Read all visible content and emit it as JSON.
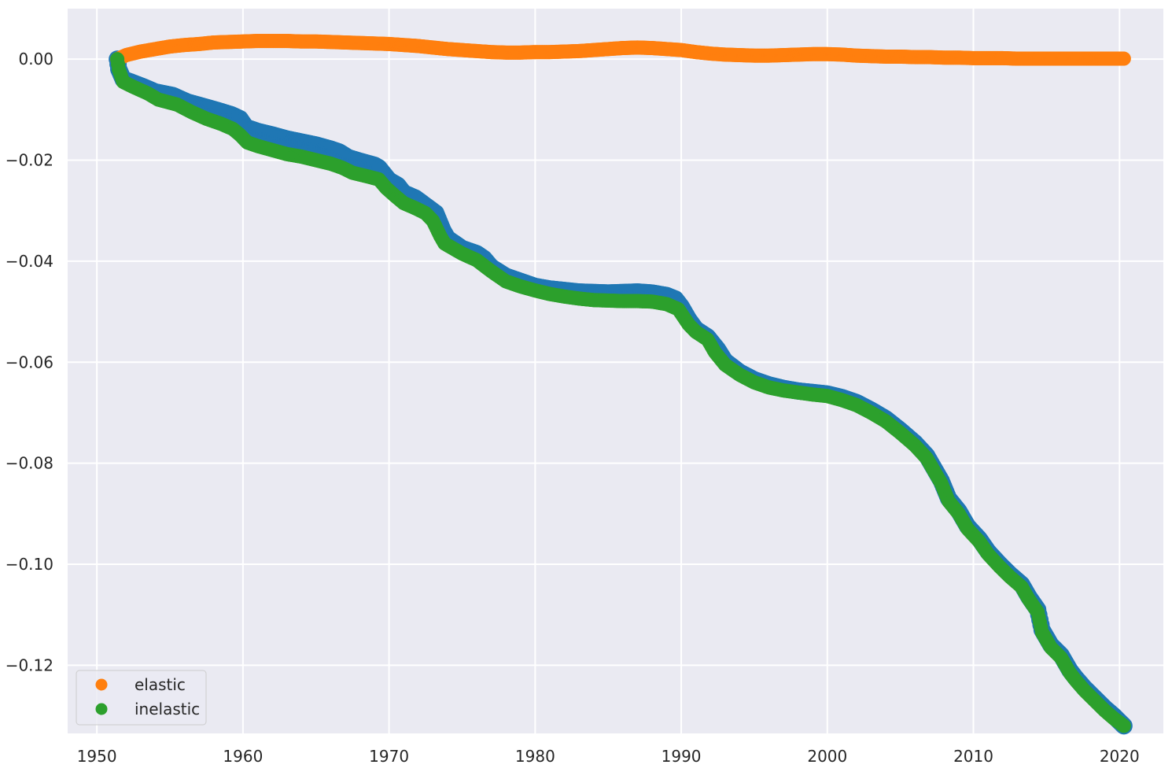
{
  "chart_data": {
    "type": "scatter",
    "xlim": [
      1948,
      2023
    ],
    "ylim": [
      -0.1335,
      0.01
    ],
    "grid": true,
    "legend_position": "lower-left",
    "x_ticks": [
      1950,
      1960,
      1970,
      1980,
      1990,
      2000,
      2010,
      2020
    ],
    "y_ticks": [
      0.0,
      -0.02,
      -0.04,
      -0.06,
      -0.08,
      -0.1,
      -0.12
    ],
    "x_tick_labels": [
      "1950",
      "1960",
      "1970",
      "1980",
      "1990",
      "2000",
      "2010",
      "2020"
    ],
    "y_tick_labels": [
      "0.00",
      "−0.02",
      "−0.04",
      "−0.06",
      "−0.08",
      "−0.10",
      "−0.12"
    ],
    "colors": {
      "background": "#eaeaf2",
      "grid": "#ffffff",
      "total": "#1f77b4",
      "elastic": "#ff7f0e",
      "inelastic": "#2ca02c"
    },
    "legend": [
      {
        "label": "elastic",
        "color": "#ff7f0e"
      },
      {
        "label": "inelastic",
        "color": "#2ca02c"
      }
    ],
    "series": [
      {
        "color": "#1f77b4",
        "points": [
          [
            1951.4,
            0.0
          ],
          [
            1951.5,
            -0.002
          ],
          [
            1951.8,
            -0.004
          ],
          [
            1952.3,
            -0.0045
          ],
          [
            1953.2,
            -0.0055
          ],
          [
            1954.0,
            -0.0065
          ],
          [
            1955.2,
            -0.0072
          ],
          [
            1956.2,
            -0.0085
          ],
          [
            1957.2,
            -0.0093
          ],
          [
            1958.3,
            -0.0102
          ],
          [
            1959.2,
            -0.011
          ],
          [
            1959.8,
            -0.0118
          ],
          [
            1960.2,
            -0.0135
          ],
          [
            1961.0,
            -0.0143
          ],
          [
            1962.0,
            -0.015
          ],
          [
            1963.0,
            -0.0158
          ],
          [
            1964.0,
            -0.0164
          ],
          [
            1965.0,
            -0.017
          ],
          [
            1966.0,
            -0.0178
          ],
          [
            1966.6,
            -0.0184
          ],
          [
            1967.2,
            -0.0195
          ],
          [
            1968.0,
            -0.0202
          ],
          [
            1969.0,
            -0.021
          ],
          [
            1969.3,
            -0.0215
          ],
          [
            1970.0,
            -0.024
          ],
          [
            1970.6,
            -0.025
          ],
          [
            1971.0,
            -0.0265
          ],
          [
            1971.8,
            -0.0275
          ],
          [
            1972.5,
            -0.029
          ],
          [
            1973.2,
            -0.0305
          ],
          [
            1973.7,
            -0.034
          ],
          [
            1974.0,
            -0.0355
          ],
          [
            1975.0,
            -0.0375
          ],
          [
            1976.0,
            -0.0385
          ],
          [
            1976.5,
            -0.0395
          ],
          [
            1977.0,
            -0.0412
          ],
          [
            1978.0,
            -0.043
          ],
          [
            1979.0,
            -0.044
          ],
          [
            1980.0,
            -0.045
          ],
          [
            1981.0,
            -0.0455
          ],
          [
            1982.0,
            -0.0458
          ],
          [
            1983.0,
            -0.0461
          ],
          [
            1984.0,
            -0.0462
          ],
          [
            1985.0,
            -0.0463
          ],
          [
            1986.0,
            -0.0462
          ],
          [
            1987.0,
            -0.0461
          ],
          [
            1988.0,
            -0.0463
          ],
          [
            1989.0,
            -0.0468
          ],
          [
            1989.6,
            -0.0475
          ],
          [
            1990.0,
            -0.049
          ],
          [
            1990.5,
            -0.0515
          ],
          [
            1991.0,
            -0.0535
          ],
          [
            1991.8,
            -0.055
          ],
          [
            1992.5,
            -0.0575
          ],
          [
            1993.0,
            -0.0598
          ],
          [
            1994.0,
            -0.062
          ],
          [
            1995.0,
            -0.0635
          ],
          [
            1996.0,
            -0.0645
          ],
          [
            1997.0,
            -0.0652
          ],
          [
            1998.0,
            -0.0657
          ],
          [
            1999.0,
            -0.066
          ],
          [
            2000.0,
            -0.0663
          ],
          [
            2001.0,
            -0.067
          ],
          [
            2002.0,
            -0.068
          ],
          [
            2003.0,
            -0.0695
          ],
          [
            2004.0,
            -0.0712
          ],
          [
            2005.0,
            -0.0735
          ],
          [
            2006.0,
            -0.076
          ],
          [
            2006.8,
            -0.0785
          ],
          [
            2007.3,
            -0.081
          ],
          [
            2007.8,
            -0.0835
          ],
          [
            2008.3,
            -0.087
          ],
          [
            2009.0,
            -0.0895
          ],
          [
            2009.6,
            -0.0925
          ],
          [
            2010.4,
            -0.095
          ],
          [
            2011.0,
            -0.0975
          ],
          [
            2011.8,
            -0.1
          ],
          [
            2012.5,
            -0.102
          ],
          [
            2013.3,
            -0.104
          ],
          [
            2013.8,
            -0.1065
          ],
          [
            2014.4,
            -0.109
          ],
          [
            2014.7,
            -0.113
          ],
          [
            2015.3,
            -0.116
          ],
          [
            2016.0,
            -0.118
          ],
          [
            2016.6,
            -0.121
          ],
          [
            2017.0,
            -0.1225
          ],
          [
            2017.6,
            -0.1245
          ],
          [
            2018.3,
            -0.1265
          ],
          [
            2019.0,
            -0.1285
          ],
          [
            2019.6,
            -0.13
          ],
          [
            2020.3,
            -0.132
          ]
        ]
      },
      {
        "name": "elastic",
        "color": "#ff7f0e",
        "points": [
          [
            1951.4,
            0.0
          ],
          [
            1952.0,
            0.0008
          ],
          [
            1953.0,
            0.0015
          ],
          [
            1954.0,
            0.002
          ],
          [
            1955.0,
            0.0025
          ],
          [
            1956.0,
            0.0028
          ],
          [
            1957.0,
            0.003
          ],
          [
            1958.0,
            0.0033
          ],
          [
            1959.0,
            0.0034
          ],
          [
            1960.0,
            0.0035
          ],
          [
            1961.0,
            0.0036
          ],
          [
            1962.0,
            0.0036
          ],
          [
            1963.0,
            0.0036
          ],
          [
            1964.0,
            0.0035
          ],
          [
            1965.0,
            0.0035
          ],
          [
            1966.0,
            0.0034
          ],
          [
            1967.0,
            0.0033
          ],
          [
            1968.0,
            0.0032
          ],
          [
            1969.0,
            0.0031
          ],
          [
            1970.0,
            0.003
          ],
          [
            1971.0,
            0.0028
          ],
          [
            1972.0,
            0.0026
          ],
          [
            1973.0,
            0.0023
          ],
          [
            1974.0,
            0.002
          ],
          [
            1975.0,
            0.0018
          ],
          [
            1976.0,
            0.0016
          ],
          [
            1977.0,
            0.0014
          ],
          [
            1978.0,
            0.0013
          ],
          [
            1979.0,
            0.0013
          ],
          [
            1980.0,
            0.0014
          ],
          [
            1981.0,
            0.0014
          ],
          [
            1982.0,
            0.0015
          ],
          [
            1983.0,
            0.0016
          ],
          [
            1984.0,
            0.0018
          ],
          [
            1985.0,
            0.002
          ],
          [
            1986.0,
            0.0022
          ],
          [
            1987.0,
            0.0023
          ],
          [
            1988.0,
            0.0022
          ],
          [
            1989.0,
            0.002
          ],
          [
            1990.0,
            0.0018
          ],
          [
            1991.0,
            0.0014
          ],
          [
            1992.0,
            0.0011
          ],
          [
            1993.0,
            0.0009
          ],
          [
            1994.0,
            0.0008
          ],
          [
            1995.0,
            0.0007
          ],
          [
            1996.0,
            0.0007
          ],
          [
            1997.0,
            0.0008
          ],
          [
            1998.0,
            0.0009
          ],
          [
            1999.0,
            0.001
          ],
          [
            2000.0,
            0.001
          ],
          [
            2001.0,
            0.0009
          ],
          [
            2002.0,
            0.0007
          ],
          [
            2003.0,
            0.0006
          ],
          [
            2004.0,
            0.0005
          ],
          [
            2005.0,
            0.0005
          ],
          [
            2006.0,
            0.0004
          ],
          [
            2007.0,
            0.0004
          ],
          [
            2008.0,
            0.0003
          ],
          [
            2009.0,
            0.0003
          ],
          [
            2010.0,
            0.0002
          ],
          [
            2011.0,
            0.0002
          ],
          [
            2012.0,
            0.0002
          ],
          [
            2013.0,
            0.0001
          ],
          [
            2014.0,
            0.0001
          ],
          [
            2015.0,
            0.0001
          ],
          [
            2016.0,
            0.0001
          ],
          [
            2017.0,
            0.0001
          ],
          [
            2018.0,
            0.0001
          ],
          [
            2019.0,
            0.0001
          ],
          [
            2020.3,
            0.0001
          ]
        ]
      },
      {
        "name": "inelastic",
        "color": "#2ca02c",
        "points": [
          [
            1951.4,
            0.0
          ],
          [
            1951.5,
            -0.002
          ],
          [
            1951.8,
            -0.0045
          ],
          [
            1952.5,
            -0.0055
          ],
          [
            1953.5,
            -0.0068
          ],
          [
            1954.2,
            -0.008
          ],
          [
            1955.5,
            -0.009
          ],
          [
            1956.5,
            -0.0105
          ],
          [
            1957.5,
            -0.0118
          ],
          [
            1958.5,
            -0.0128
          ],
          [
            1959.3,
            -0.0138
          ],
          [
            1959.8,
            -0.015
          ],
          [
            1960.3,
            -0.0165
          ],
          [
            1961.0,
            -0.0172
          ],
          [
            1962.0,
            -0.018
          ],
          [
            1963.0,
            -0.0188
          ],
          [
            1964.0,
            -0.0193
          ],
          [
            1965.0,
            -0.02
          ],
          [
            1966.0,
            -0.0207
          ],
          [
            1966.8,
            -0.0215
          ],
          [
            1967.5,
            -0.0225
          ],
          [
            1968.5,
            -0.0232
          ],
          [
            1969.3,
            -0.0238
          ],
          [
            1969.8,
            -0.0255
          ],
          [
            1970.3,
            -0.0268
          ],
          [
            1971.0,
            -0.0285
          ],
          [
            1971.8,
            -0.0295
          ],
          [
            1972.5,
            -0.0305
          ],
          [
            1973.0,
            -0.032
          ],
          [
            1973.5,
            -0.035
          ],
          [
            1973.8,
            -0.0365
          ],
          [
            1975.0,
            -0.0385
          ],
          [
            1976.0,
            -0.0398
          ],
          [
            1977.0,
            -0.042
          ],
          [
            1978.0,
            -0.044
          ],
          [
            1979.0,
            -0.045
          ],
          [
            1980.0,
            -0.0458
          ],
          [
            1981.0,
            -0.0465
          ],
          [
            1982.0,
            -0.047
          ],
          [
            1983.0,
            -0.0474
          ],
          [
            1984.0,
            -0.0477
          ],
          [
            1985.0,
            -0.0478
          ],
          [
            1986.0,
            -0.0479
          ],
          [
            1987.0,
            -0.0479
          ],
          [
            1988.0,
            -0.048
          ],
          [
            1989.0,
            -0.0485
          ],
          [
            1989.8,
            -0.0495
          ],
          [
            1990.5,
            -0.0525
          ],
          [
            1991.0,
            -0.054
          ],
          [
            1991.8,
            -0.0555
          ],
          [
            1992.3,
            -0.058
          ],
          [
            1993.0,
            -0.0605
          ],
          [
            1994.0,
            -0.0625
          ],
          [
            1995.0,
            -0.064
          ],
          [
            1996.0,
            -0.065
          ],
          [
            1997.0,
            -0.0656
          ],
          [
            1998.0,
            -0.066
          ],
          [
            1999.0,
            -0.0664
          ],
          [
            2000.0,
            -0.0667
          ],
          [
            2001.0,
            -0.0675
          ],
          [
            2002.0,
            -0.0685
          ],
          [
            2003.0,
            -0.07
          ],
          [
            2004.0,
            -0.0717
          ],
          [
            2005.0,
            -0.074
          ],
          [
            2006.0,
            -0.0765
          ],
          [
            2006.8,
            -0.079
          ],
          [
            2007.3,
            -0.0815
          ],
          [
            2007.8,
            -0.084
          ],
          [
            2008.3,
            -0.0875
          ],
          [
            2009.0,
            -0.09
          ],
          [
            2009.6,
            -0.093
          ],
          [
            2010.4,
            -0.0955
          ],
          [
            2011.0,
            -0.098
          ],
          [
            2011.8,
            -0.1005
          ],
          [
            2012.5,
            -0.1025
          ],
          [
            2013.3,
            -0.1045
          ],
          [
            2013.8,
            -0.107
          ],
          [
            2014.4,
            -0.1095
          ],
          [
            2014.7,
            -0.1135
          ],
          [
            2015.3,
            -0.1165
          ],
          [
            2016.0,
            -0.1185
          ],
          [
            2016.6,
            -0.1215
          ],
          [
            2017.0,
            -0.123
          ],
          [
            2017.6,
            -0.125
          ],
          [
            2018.3,
            -0.127
          ],
          [
            2019.0,
            -0.129
          ],
          [
            2019.6,
            -0.1305
          ],
          [
            2020.3,
            -0.132
          ]
        ]
      }
    ]
  }
}
